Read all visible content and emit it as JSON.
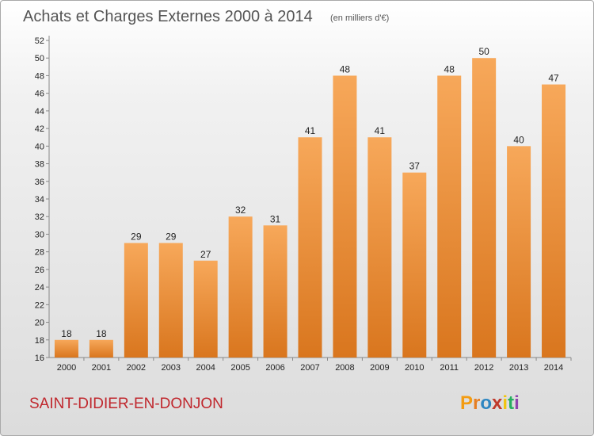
{
  "chart_data": {
    "type": "bar",
    "title": "Achats et Charges Externes 2000 à 2014",
    "unit": "(en milliers d'€)",
    "categories": [
      "2000",
      "2001",
      "2002",
      "2003",
      "2004",
      "2005",
      "2006",
      "2007",
      "2008",
      "2009",
      "2010",
      "2011",
      "2012",
      "2013",
      "2014"
    ],
    "values": [
      18,
      18,
      29,
      29,
      27,
      32,
      31,
      41,
      48,
      41,
      37,
      48,
      50,
      40,
      47
    ],
    "ylim": [
      16,
      52
    ],
    "yticks": [
      16,
      18,
      20,
      22,
      24,
      26,
      28,
      30,
      32,
      34,
      36,
      38,
      40,
      42,
      44,
      46,
      48,
      50,
      52
    ],
    "grid": false,
    "bar_color_top": "#f7a85a",
    "bar_color_bottom": "#d9761e"
  },
  "footer": {
    "town": "SAINT-DIDIER-EN-DONJON",
    "logo": [
      "P",
      "r",
      "o",
      "x",
      "i",
      "t",
      "i"
    ],
    "logo_colors": [
      "#f39c12",
      "#e67e22",
      "#2e86c1",
      "#c0392b",
      "#f1c40f",
      "#27ae60",
      "#8e44ad"
    ]
  }
}
